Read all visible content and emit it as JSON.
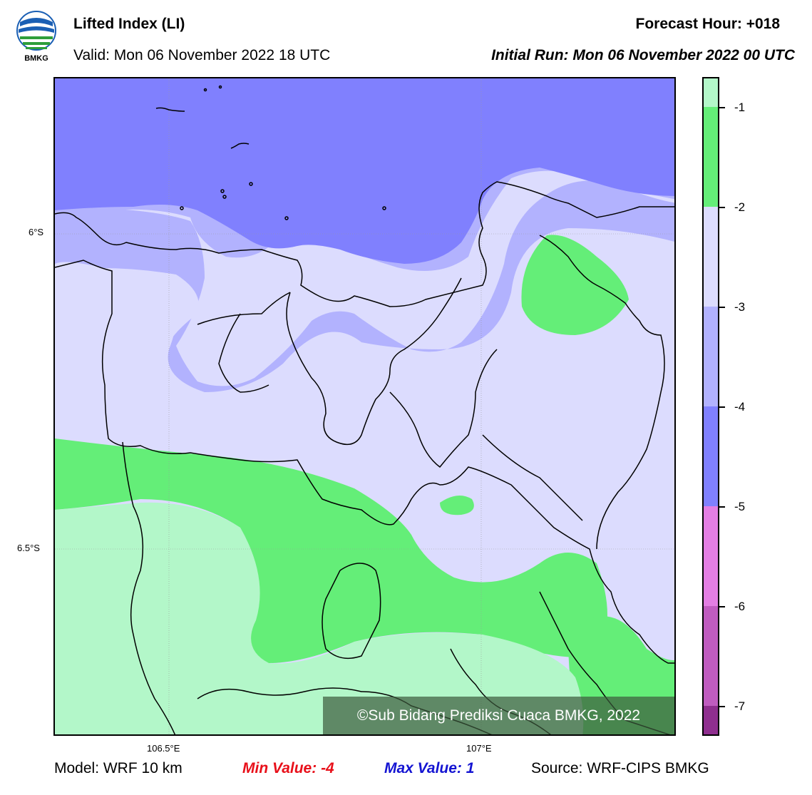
{
  "header": {
    "title": "Lifted Index (LI)",
    "valid": "Valid: Mon 06 November 2022 18 UTC",
    "forecast_hour": "Forecast Hour: +018",
    "initial_run": "Initial Run: Mon 06 November 2022 00 UTC",
    "logo_text": "BMKG"
  },
  "map": {
    "lat_labels": [
      "6°S",
      "6.5°S"
    ],
    "lon_labels": [
      "106.5°E",
      "107°E"
    ],
    "credit": "©Sub Bidang Prediksi Cuaca BMKG, 2022"
  },
  "colorbar": {
    "labels": [
      "-1",
      "-2",
      "-3",
      "-4",
      "-5",
      "-6",
      "-7"
    ],
    "colors": [
      "#b3f7c9",
      "#64ee78",
      "#dcdcfe",
      "#b2b2fe",
      "#8080fe",
      "#e37ee3",
      "#c05cc0",
      "#8f2f8f"
    ]
  },
  "footer": {
    "model": "Model: WRF 10 km",
    "min_value": "Min Value: -4",
    "max_value": "Max Value: 1",
    "source": "Source: WRF-CIPS BMKG"
  }
}
